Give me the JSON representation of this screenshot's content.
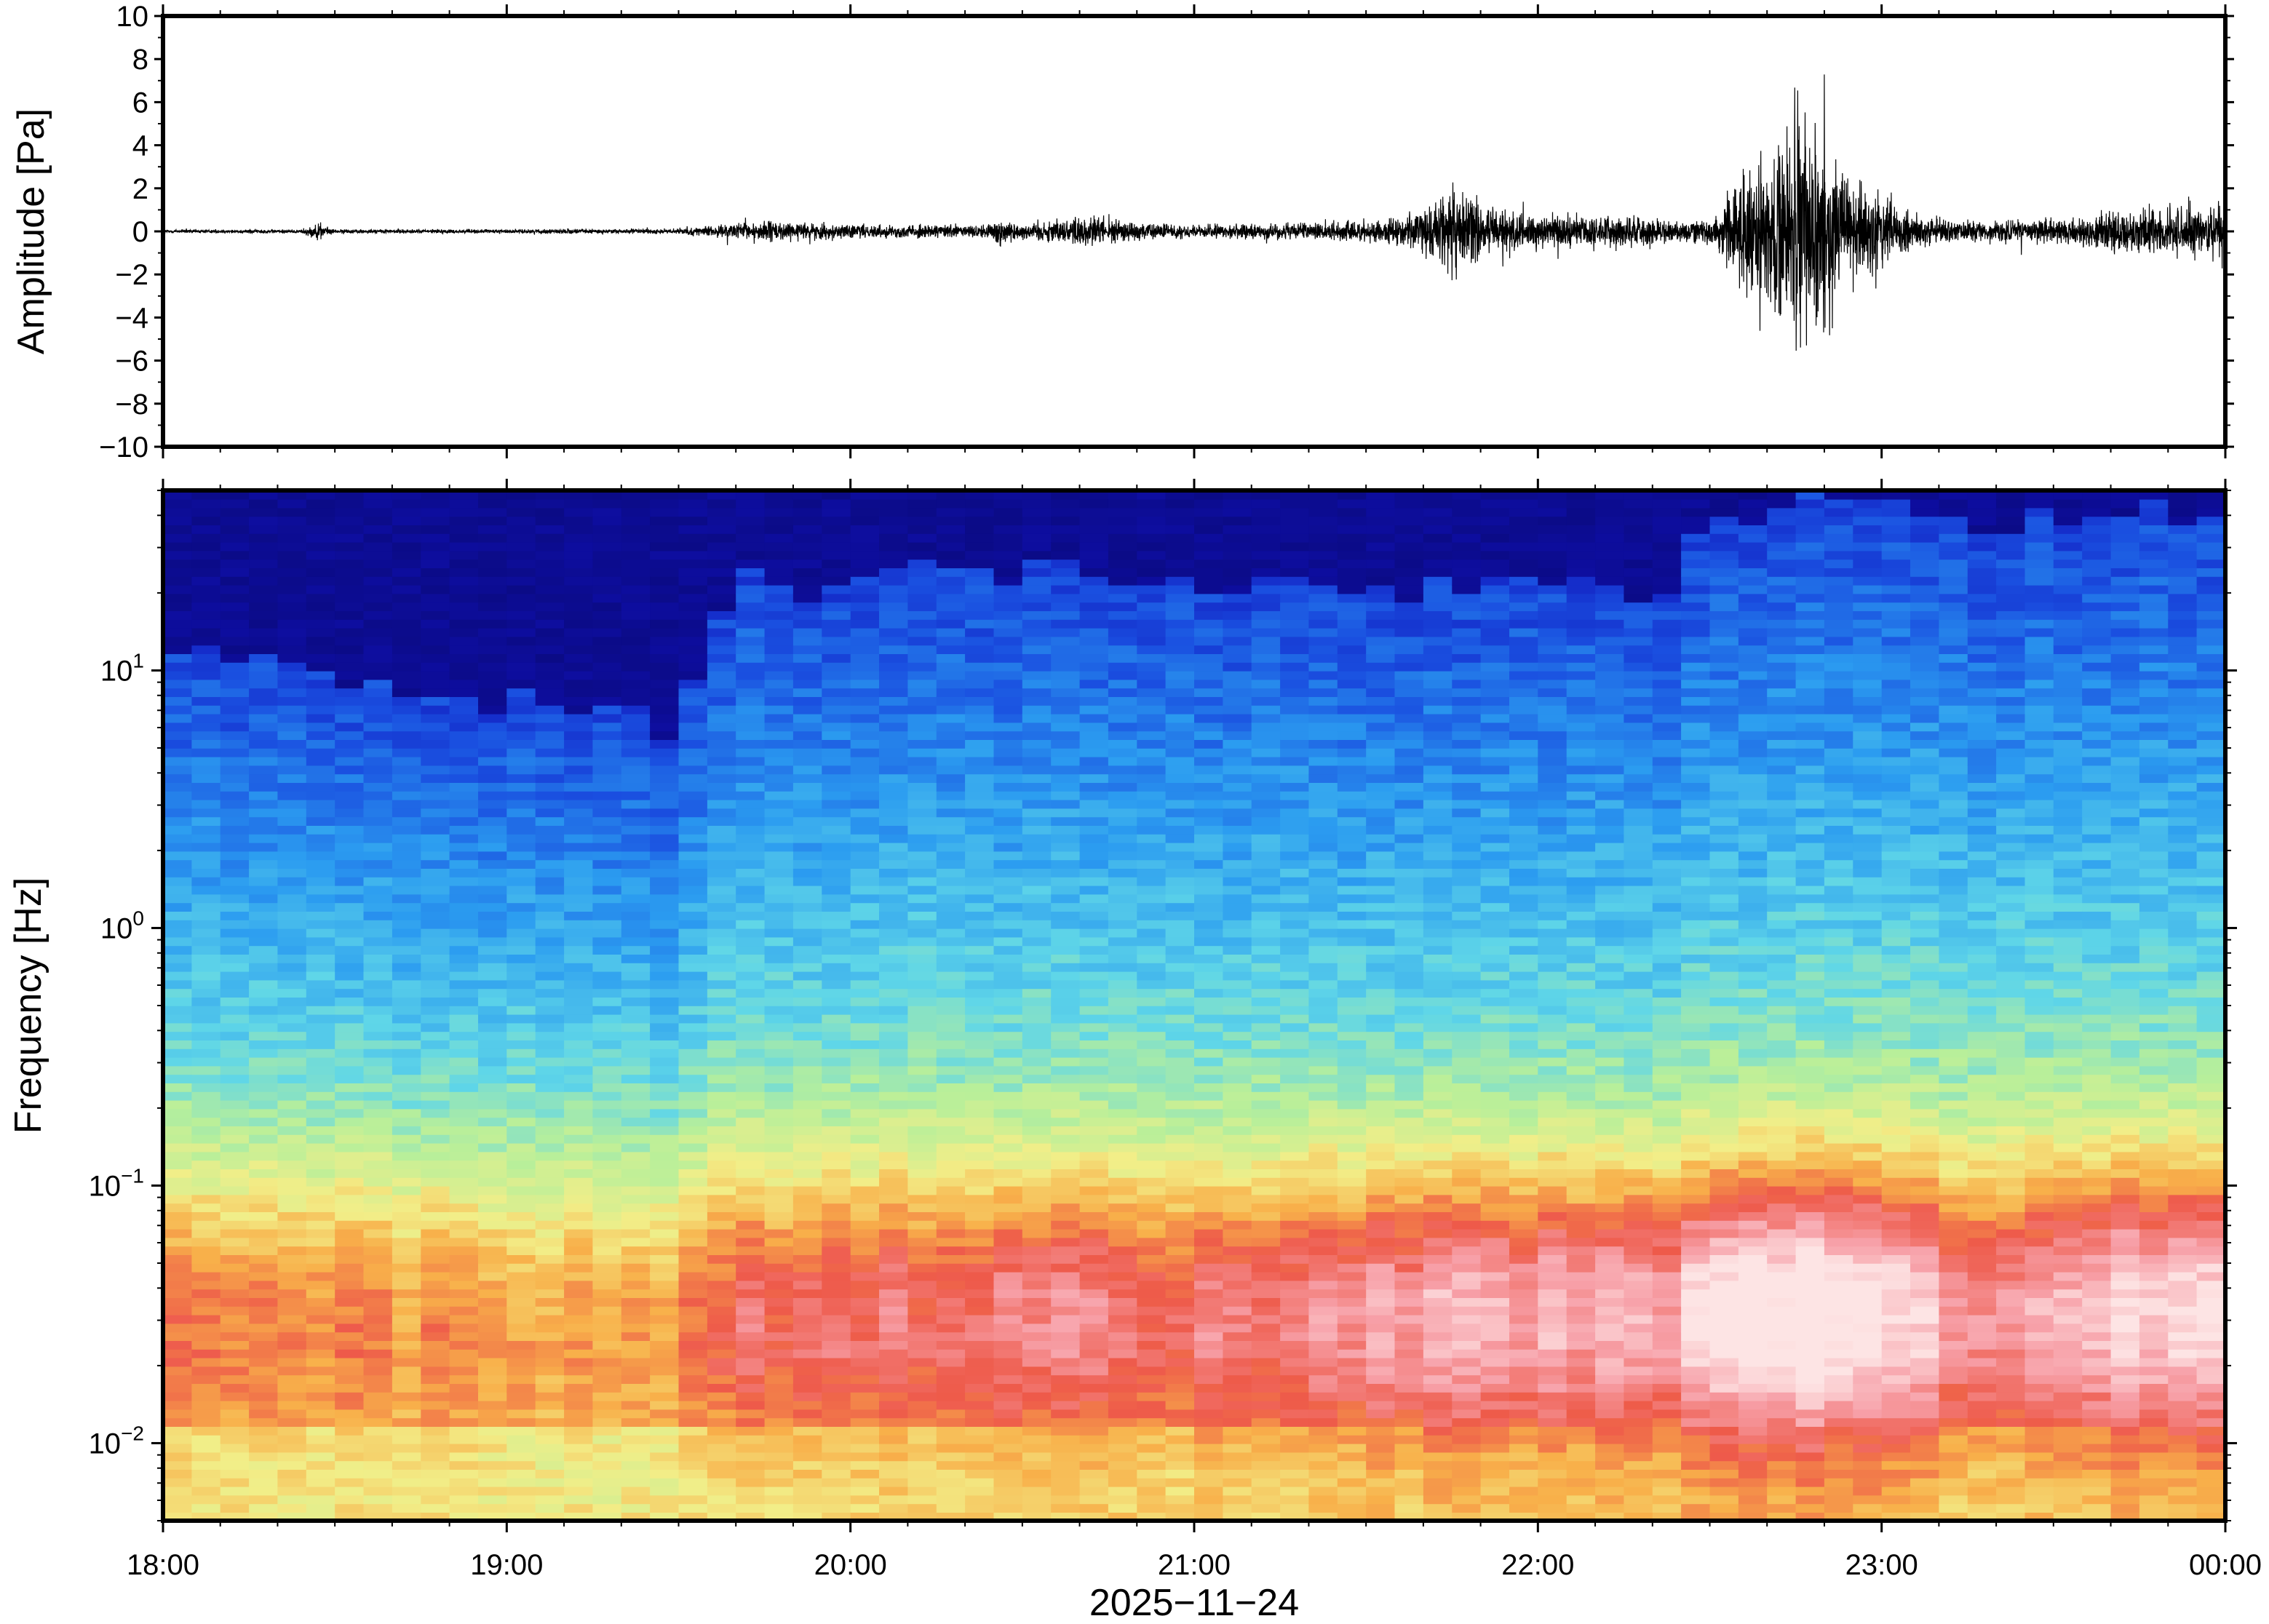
{
  "chart_data": [
    {
      "type": "line",
      "panel": "waveform",
      "ylabel": "Amplitude [Pa]",
      "ylim": [
        -10,
        10
      ],
      "yticks": [
        10,
        8,
        6,
        4,
        2,
        0,
        -2,
        -4,
        -6,
        -8,
        -10
      ],
      "ytick_labels": [
        "10",
        "8",
        "6",
        "4",
        "2",
        "0",
        "−2",
        "−4",
        "−6",
        "−8",
        "−10"
      ],
      "x_range_hours": [
        0,
        6
      ],
      "grid": false,
      "line_color": "#000000",
      "series": [
        {
          "envelope_x_hours": [
            0.0,
            0.4,
            0.45,
            0.5,
            1.0,
            1.5,
            1.6,
            1.75,
            1.8,
            2.0,
            2.4,
            2.43,
            2.5,
            2.6,
            2.7,
            2.8,
            3.0,
            3.3,
            3.5,
            3.6,
            3.7,
            3.75,
            3.85,
            3.9,
            4.0,
            4.2,
            4.3,
            4.4,
            4.5,
            4.55,
            4.6,
            4.7,
            4.75,
            4.8,
            4.85,
            4.9,
            5.0,
            5.1,
            5.2,
            5.3,
            5.5,
            5.7,
            5.9,
            6.0
          ],
          "envelope_amplitude": [
            0.15,
            0.15,
            0.6,
            0.15,
            0.15,
            0.2,
            0.4,
            0.8,
            0.7,
            0.5,
            0.5,
            1.2,
            0.6,
            0.9,
            1.3,
            0.7,
            0.5,
            0.6,
            0.8,
            1.0,
            2.0,
            3.3,
            2.2,
            1.5,
            1.3,
            1.2,
            1.1,
            0.8,
            0.9,
            2.5,
            4.5,
            6.0,
            9.5,
            8.0,
            6.0,
            4.0,
            2.8,
            1.5,
            0.9,
            0.7,
            0.9,
            1.6,
            2.0,
            2.0
          ]
        }
      ]
    },
    {
      "type": "heatmap",
      "panel": "spectrogram",
      "ylabel": "Frequency [Hz]",
      "yscale": "log",
      "ylim": [
        0.005,
        50
      ],
      "ytick_values": [
        10,
        1,
        0.1,
        0.01
      ],
      "ytick_labels": [
        {
          "base": "10",
          "exp": "1"
        },
        {
          "base": "10",
          "exp": "0"
        },
        {
          "base": "10",
          "exp": "−1"
        },
        {
          "base": "10",
          "exp": "−2"
        }
      ],
      "xlabel": "2025−11−24",
      "xticks_hours": [
        0,
        1,
        2,
        3,
        4,
        5,
        6
      ],
      "xtick_labels": [
        "18:00",
        "19:00",
        "20:00",
        "21:00",
        "22:00",
        "23:00",
        "00:00"
      ],
      "colormap": [
        "#0a0a7a",
        "#1010b8",
        "#1a4fe0",
        "#2b9cf0",
        "#5fd6e8",
        "#b8ef9a",
        "#f2ee88",
        "#f8b04a",
        "#ee5a4a",
        "#f7a0a8",
        "#fde4e4"
      ],
      "time_hours": [
        0.0,
        0.5,
        1.0,
        1.5,
        1.67,
        2.0,
        2.5,
        3.0,
        3.5,
        3.75,
        4.0,
        4.4,
        4.5,
        4.8,
        5.0,
        5.2,
        5.35,
        5.6,
        6.0
      ],
      "upper_cutoff_hz": [
        12,
        9,
        8,
        6,
        22,
        22,
        25,
        22,
        20,
        22,
        22,
        20,
        40,
        45,
        45,
        35,
        35,
        40,
        45
      ],
      "noise_level": [
        0.35,
        0.33,
        0.3,
        0.32,
        0.45,
        0.48,
        0.52,
        0.5,
        0.6,
        0.68,
        0.66,
        0.62,
        0.8,
        0.92,
        0.82,
        0.6,
        0.62,
        0.72,
        0.75
      ]
    }
  ]
}
